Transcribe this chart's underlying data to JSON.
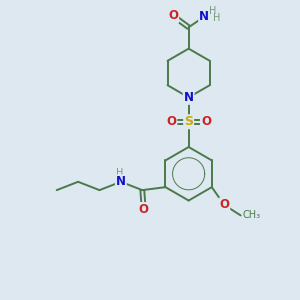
{
  "background_color": "#dde8f0",
  "fig_size": [
    3.0,
    3.0
  ],
  "dpi": 100,
  "atoms": {
    "colors": {
      "C": "#4a7a4a",
      "N": "#1010cc",
      "O": "#cc2222",
      "S": "#ccaa00",
      "H": "#7a9a7a"
    }
  },
  "bond_color": "#4a7a4a",
  "line_width": 1.4,
  "font_size": 8.5
}
